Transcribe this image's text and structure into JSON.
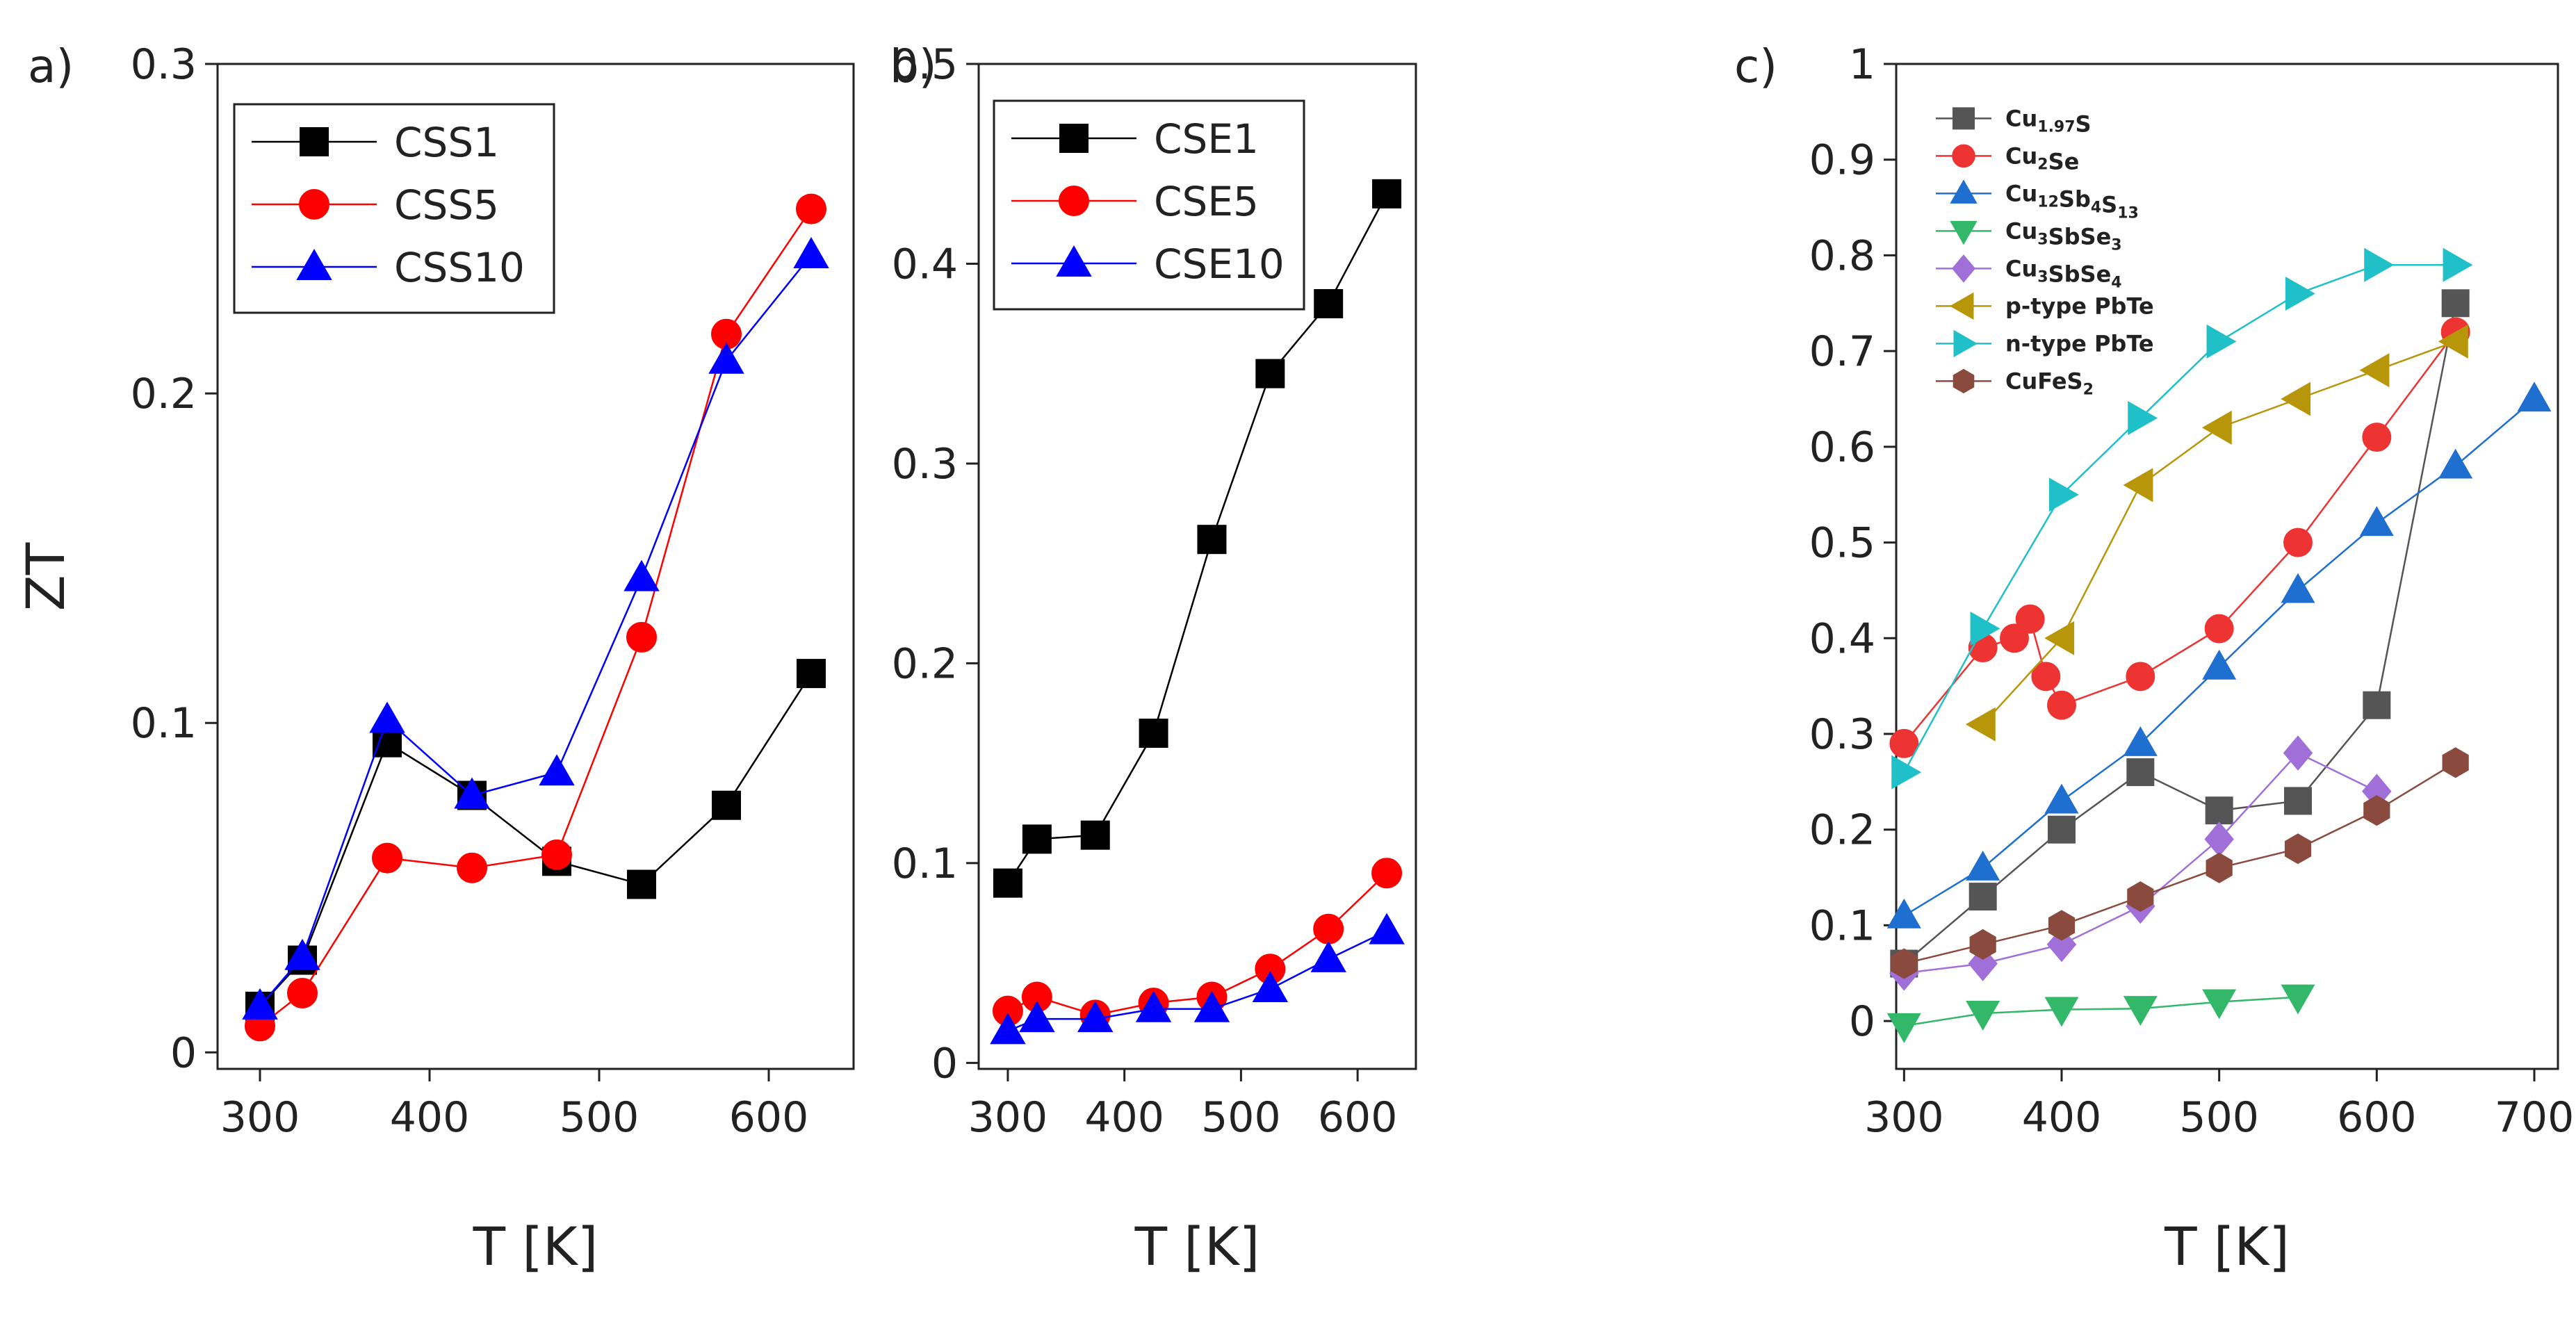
{
  "chart_data": [
    {
      "type": "line",
      "panel_label": "a)",
      "xlabel": "T [K]",
      "ylabel": "ZT",
      "xlim": [
        275,
        650
      ],
      "ylim": [
        -0.005,
        0.3
      ],
      "xticks": [
        300,
        400,
        500,
        600
      ],
      "yticks": [
        0,
        0.1,
        0.2,
        0.3
      ],
      "xtick_labels": [
        "300",
        "400",
        "500",
        "600"
      ],
      "ytick_labels": [
        "0",
        "0.1",
        "0.2",
        "0.3"
      ],
      "legend_position": "top-left",
      "series": [
        {
          "name": "CSS1",
          "marker": "square",
          "color": "#000000",
          "x": [
            300,
            325,
            375,
            425,
            475,
            525,
            575,
            625
          ],
          "y": [
            0.014,
            0.028,
            0.094,
            0.078,
            0.058,
            0.051,
            0.075,
            0.115
          ]
        },
        {
          "name": "CSS5",
          "marker": "circle",
          "color": "#ff0000",
          "x": [
            300,
            325,
            375,
            425,
            475,
            525,
            575,
            625
          ],
          "y": [
            0.008,
            0.018,
            0.059,
            0.056,
            0.06,
            0.126,
            0.218,
            0.256
          ]
        },
        {
          "name": "CSS10",
          "marker": "triangle-up",
          "color": "#0000ff",
          "x": [
            300,
            325,
            375,
            425,
            475,
            525,
            575,
            625
          ],
          "y": [
            0.014,
            0.029,
            0.101,
            0.078,
            0.085,
            0.144,
            0.21,
            0.242
          ]
        }
      ]
    },
    {
      "type": "line",
      "panel_label": "b)",
      "xlabel": "T [K]",
      "ylabel": "",
      "xlim": [
        275,
        650
      ],
      "ylim": [
        -0.003,
        0.5
      ],
      "xticks": [
        300,
        400,
        500,
        600
      ],
      "yticks": [
        0,
        0.1,
        0.2,
        0.3,
        0.4,
        0.5
      ],
      "xtick_labels": [
        "300",
        "400",
        "500",
        "600"
      ],
      "ytick_labels": [
        "0",
        "0.1",
        "0.2",
        "0.3",
        "0.4",
        "0.5"
      ],
      "legend_position": "top-left",
      "series": [
        {
          "name": "CSE1",
          "marker": "square",
          "color": "#000000",
          "x": [
            300,
            325,
            375,
            425,
            475,
            525,
            575,
            625
          ],
          "y": [
            0.09,
            0.112,
            0.114,
            0.165,
            0.262,
            0.345,
            0.38,
            0.435
          ]
        },
        {
          "name": "CSE5",
          "marker": "circle",
          "color": "#ff0000",
          "x": [
            300,
            325,
            375,
            425,
            475,
            525,
            575,
            625
          ],
          "y": [
            0.026,
            0.033,
            0.024,
            0.03,
            0.033,
            0.047,
            0.067,
            0.095
          ]
        },
        {
          "name": "CSE10",
          "marker": "triangle-up",
          "color": "#0000ff",
          "x": [
            300,
            325,
            375,
            425,
            475,
            525,
            575,
            625
          ],
          "y": [
            0.016,
            0.022,
            0.022,
            0.027,
            0.027,
            0.037,
            0.052,
            0.066
          ]
        }
      ]
    },
    {
      "type": "line",
      "panel_label": "c)",
      "xlabel": "T [K]",
      "ylabel": "",
      "xlim": [
        295,
        715
      ],
      "ylim": [
        -0.05,
        1.0
      ],
      "xticks": [
        300,
        400,
        500,
        600,
        700
      ],
      "yticks": [
        0,
        0.1,
        0.2,
        0.3,
        0.4,
        0.5,
        0.6,
        0.7,
        0.8,
        0.9,
        1.0
      ],
      "xtick_labels": [
        "300",
        "400",
        "500",
        "600",
        "700"
      ],
      "ytick_labels": [
        "0",
        "0.1",
        "0.2",
        "0.3",
        "0.4",
        "0.5",
        "0.6",
        "0.7",
        "0.8",
        "0.9",
        "1"
      ],
      "legend_position": "top-left",
      "series": [
        {
          "name": "Cu",
          "sub": "1.97",
          "rest": "S",
          "marker": "square",
          "color": "#555555",
          "x": [
            300,
            350,
            400,
            450,
            500,
            550,
            600,
            650
          ],
          "y": [
            0.06,
            0.13,
            0.2,
            0.26,
            0.22,
            0.23,
            0.33,
            0.75
          ]
        },
        {
          "name": "Cu",
          "sub": "2",
          "rest": "Se",
          "marker": "circle",
          "color": "#ee3333",
          "x": [
            300,
            350,
            370,
            380,
            390,
            400,
            450,
            500,
            550,
            600,
            650
          ],
          "y": [
            0.29,
            0.39,
            0.4,
            0.42,
            0.36,
            0.33,
            0.36,
            0.41,
            0.5,
            0.61,
            0.72
          ]
        },
        {
          "name": "Cu",
          "sub": "12",
          "rest": "Sb4S13",
          "marker": "triangle-up",
          "color": "#1f6fd1",
          "x": [
            300,
            350,
            400,
            450,
            500,
            550,
            600,
            650,
            700
          ],
          "y": [
            0.11,
            0.16,
            0.23,
            0.29,
            0.37,
            0.45,
            0.52,
            0.58,
            0.65
          ]
        },
        {
          "name": "Cu",
          "sub": "3",
          "rest": "SbSe3",
          "marker": "triangle-down",
          "color": "#33b86a",
          "x": [
            300,
            350,
            400,
            450,
            500,
            550
          ],
          "y": [
            -0.005,
            0.008,
            0.012,
            0.013,
            0.02,
            0.025
          ]
        },
        {
          "name": "Cu",
          "sub": "3",
          "rest": "SbSe4",
          "marker": "diamond",
          "color": "#a070d8",
          "x": [
            300,
            350,
            400,
            450,
            500,
            550,
            600
          ],
          "y": [
            0.05,
            0.06,
            0.08,
            0.12,
            0.19,
            0.28,
            0.24
          ]
        },
        {
          "name": "p-type PbTe",
          "marker": "triangle-left",
          "color": "#b8960a",
          "x": [
            350,
            400,
            450,
            500,
            550,
            600,
            650
          ],
          "y": [
            0.31,
            0.4,
            0.56,
            0.62,
            0.65,
            0.68,
            0.71
          ]
        },
        {
          "name": "n-type PbTe",
          "marker": "triangle-right",
          "color": "#20c0c8",
          "x": [
            300,
            350,
            400,
            450,
            500,
            550,
            600,
            650
          ],
          "y": [
            0.26,
            0.41,
            0.55,
            0.63,
            0.71,
            0.76,
            0.79,
            0.79
          ]
        },
        {
          "name": "CuFeS",
          "sub": "2",
          "rest": "",
          "marker": "hexagon",
          "color": "#8b4a3e",
          "x": [
            300,
            350,
            400,
            450,
            500,
            550,
            600,
            650
          ],
          "y": [
            0.06,
            0.08,
            0.1,
            0.13,
            0.16,
            0.18,
            0.22,
            0.27
          ]
        }
      ],
      "legend_labels": [
        {
          "base": "Cu",
          "sub": "1.97",
          "tail": "S"
        },
        {
          "base": "Cu",
          "sub": "2",
          "tail": "Se"
        },
        {
          "base": "Cu",
          "sub": "12",
          "tail": "Sb",
          "sub2": "4",
          "tail2": "S",
          "sub3": "13"
        },
        {
          "base": "Cu",
          "sub": "3",
          "tail": "SbSe",
          "sub2": "3"
        },
        {
          "base": "Cu",
          "sub": "3",
          "tail": "SbSe",
          "sub2": "4"
        },
        {
          "base": "p-type PbTe"
        },
        {
          "base": "n-type PbTe"
        },
        {
          "base": "CuFeS",
          "sub": "2"
        }
      ]
    }
  ]
}
